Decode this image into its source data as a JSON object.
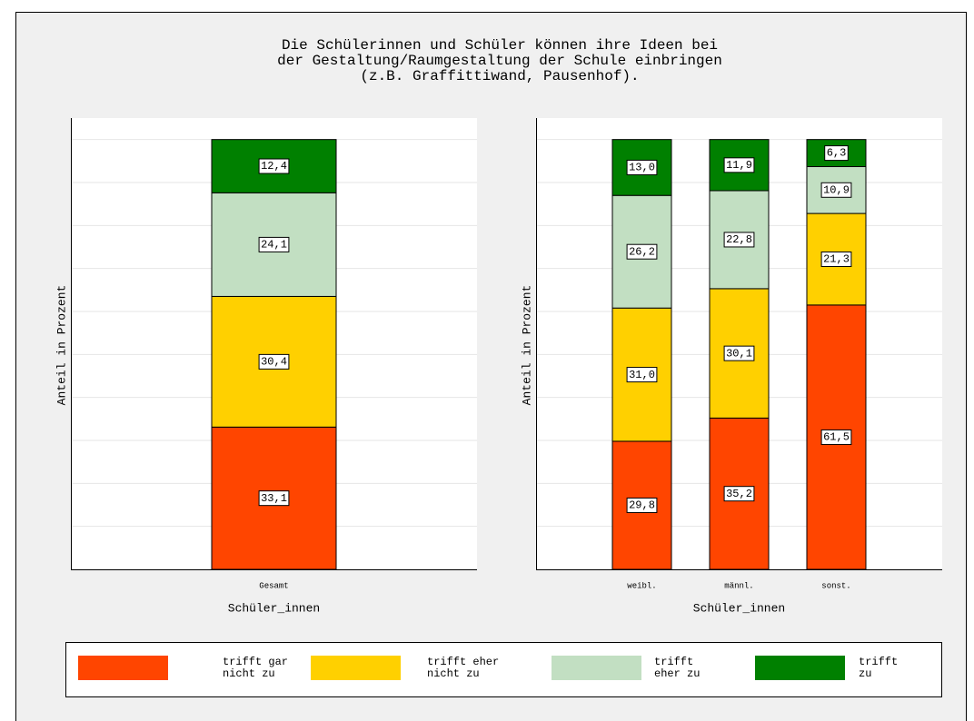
{
  "title": [
    "Die Schülerinnen und Schüler können ihre Ideen bei",
    "der Gestaltung/Raumgestaltung der Schule einbringen",
    "(z.B. Graffittiwand, Pausenhof)."
  ],
  "chart_data": [
    {
      "type": "bar",
      "stacked": true,
      "categories": [
        "Gesamt"
      ],
      "x_label": "Schüler_innen",
      "y_label": "Anteil in Prozent",
      "ylim": [
        0,
        105
      ],
      "yticks": [
        0,
        10,
        20,
        30,
        40,
        50,
        60,
        70,
        80,
        90,
        100
      ],
      "grid": true,
      "series": [
        {
          "name": "trifft gar\nnicht zu",
          "color": "#ff4500",
          "values": [
            33.1
          ],
          "value_labels": [
            "33,1"
          ]
        },
        {
          "name": "trifft eher\nnicht zu",
          "color": "#ffd000",
          "values": [
            30.4
          ],
          "value_labels": [
            "30,4"
          ]
        },
        {
          "name": "trifft\neher zu",
          "color": "#c2dfc2",
          "values": [
            24.1
          ],
          "value_labels": [
            "24,1"
          ]
        },
        {
          "name": "trifft\nzu",
          "color": "#008000",
          "values": [
            12.4
          ],
          "value_labels": [
            "12,4"
          ]
        }
      ]
    },
    {
      "type": "bar",
      "stacked": true,
      "categories": [
        "weibl.",
        "männl.",
        "sonst."
      ],
      "x_label": "Schüler_innen",
      "y_label": "Anteil in Prozent",
      "ylim": [
        0,
        105
      ],
      "yticks": [
        0,
        10,
        20,
        30,
        40,
        50,
        60,
        70,
        80,
        90,
        100
      ],
      "grid": true,
      "series": [
        {
          "color": "#ff4500",
          "values": [
            29.8,
            35.2,
            61.5
          ],
          "value_labels": [
            "29,8",
            "35,2",
            "61,5"
          ]
        },
        {
          "color": "#ffd000",
          "values": [
            31.0,
            30.1,
            21.3
          ],
          "value_labels": [
            "31,0",
            "30,1",
            "21,3"
          ]
        },
        {
          "color": "#c2dfc2",
          "values": [
            26.2,
            22.8,
            10.9
          ],
          "value_labels": [
            "26,2",
            "22,8",
            "10,9"
          ]
        },
        {
          "color": "#008000",
          "values": [
            13.0,
            11.9,
            6.3
          ],
          "value_labels": [
            "13,0",
            "11,9",
            "6,3"
          ]
        }
      ]
    }
  ]
}
